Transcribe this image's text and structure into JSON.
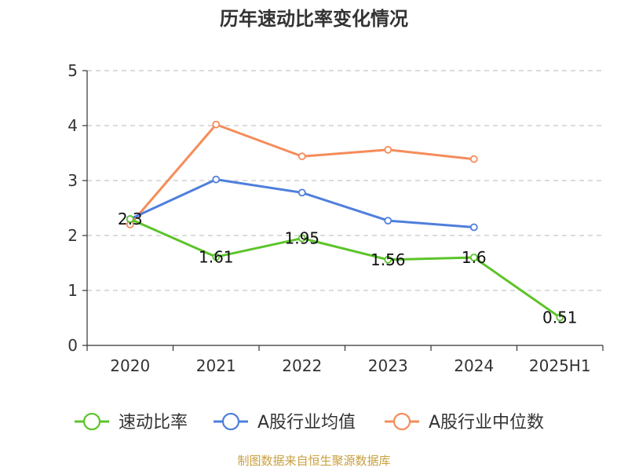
{
  "chart_data": {
    "type": "line",
    "title": "历年速动比率变化情况",
    "categories": [
      "2020",
      "2021",
      "2022",
      "2023",
      "2024",
      "2025H1"
    ],
    "ylim": [
      0,
      5
    ],
    "yticks": [
      "0",
      "1",
      "2",
      "3",
      "4",
      "5"
    ],
    "grid": true,
    "legend_position": "bottom",
    "series": [
      {
        "name": "速动比率",
        "color": "#5cc42a",
        "values": [
          2.3,
          1.61,
          1.95,
          1.56,
          1.6,
          0.51
        ],
        "labels": [
          "2.3",
          "1.61",
          "1.95",
          "1.56",
          "1.6",
          "0.51"
        ]
      },
      {
        "name": "A股行业均值",
        "color": "#4f7fdc",
        "values": [
          2.3,
          3.02,
          2.78,
          2.27,
          2.15,
          null
        ]
      },
      {
        "name": "A股行业中位数",
        "color": "#f58c5a",
        "values": [
          2.2,
          4.02,
          3.44,
          3.56,
          3.39,
          null
        ]
      }
    ]
  },
  "source": "制图数据来自恒生聚源数据库"
}
